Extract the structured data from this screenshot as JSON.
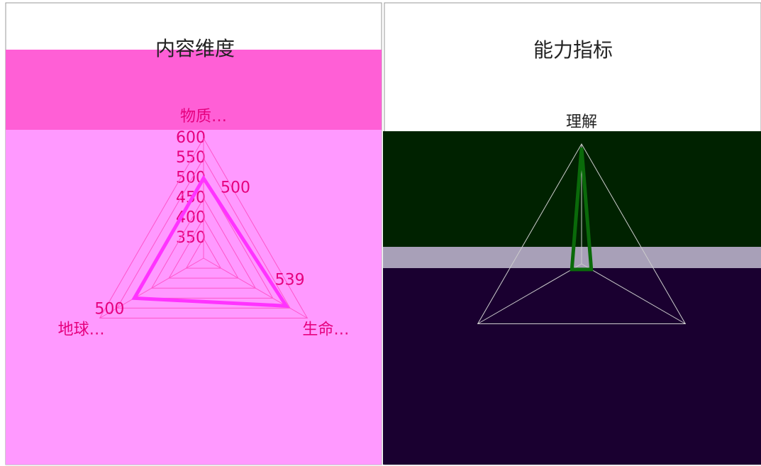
{
  "chart_data": [
    {
      "type": "radar",
      "title": "内容维度",
      "categories": [
        "物质…",
        "生命…",
        "地球…"
      ],
      "values": [
        500,
        539,
        500
      ],
      "color": "#ff33ff",
      "ylim": [
        300,
        600
      ],
      "yticks": [
        350,
        400,
        450,
        500,
        550,
        600
      ]
    },
    {
      "type": "radar",
      "title": "能力指标",
      "categories": [
        "理解",
        null,
        null
      ],
      "values": [
        610,
        330,
        330
      ],
      "color": "#0a6a0a",
      "ylim": [
        300,
        620
      ]
    }
  ]
}
